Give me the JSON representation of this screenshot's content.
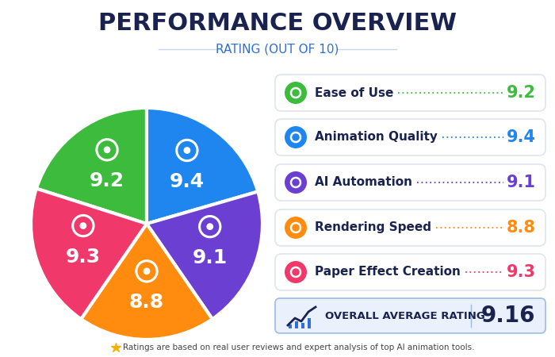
{
  "chart_data": {
    "type": "pie",
    "title": "PERFORMANCE OVERVIEW",
    "subtitle": "RATING (OUT OF 10)",
    "categories": [
      "Ease of Use",
      "Animation Quality",
      "AI Automation",
      "Rendering Speed",
      "Paper Effect Creation"
    ],
    "values": [
      9.2,
      9.4,
      9.1,
      8.8,
      9.3
    ],
    "colors": [
      "#3dbb3d",
      "#1f86f0",
      "#6a3fd2",
      "#ff8c0f",
      "#f0386b"
    ],
    "data_labels": true,
    "overall": {
      "label": "OVERALL AVERAGE RATING",
      "value": 9.16
    },
    "note": "Ratings are based on real user reviews and expert analysis of top AI animation tools."
  }
}
